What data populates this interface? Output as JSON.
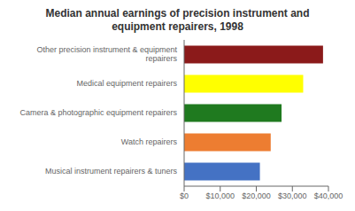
{
  "chart_data": {
    "type": "bar",
    "title": "Median annual earnings of precision instrument and\nequipment repairers, 1998",
    "orientation": "horizontal",
    "categories": [
      "Musical instrument repairers & tuners",
      "Watch repairers",
      "Camera & photographic equipment repairers",
      "Medical equipment repairers",
      "Other precision instrument & equipment\nrepairers"
    ],
    "values": [
      21000,
      24000,
      27000,
      33000,
      38500
    ],
    "colors": [
      "#4472C4",
      "#ED7D31",
      "#1F7A1F",
      "#FFFF00",
      "#8B1A1A"
    ],
    "xlim": [
      0,
      40000
    ],
    "xticks": [
      {
        "value": 0,
        "label": "$0"
      },
      {
        "value": 10000,
        "label": "$10,000"
      },
      {
        "value": 20000,
        "label": "$20,000"
      },
      {
        "value": 30000,
        "label": "$30,000"
      },
      {
        "value": 40000,
        "label": "$40,000"
      }
    ],
    "grid": false
  }
}
